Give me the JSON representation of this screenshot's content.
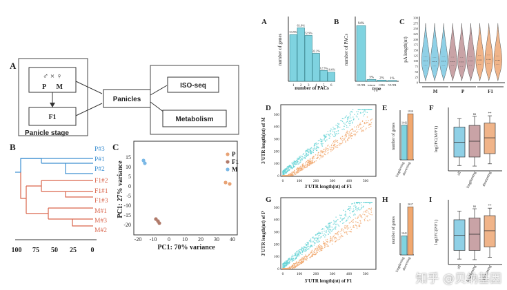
{
  "panelA_left": {
    "label": "A",
    "parents": "P      M",
    "cross_symbol": "♂ × ♀",
    "f1": "F1",
    "panicles": "Panicles",
    "iso_seq": "ISO-seq",
    "metabolism": "Metabolism",
    "stage": "Panicle stage"
  },
  "panelB_left": {
    "label": "B",
    "leaves": [
      "P#3",
      "P#1",
      "P#2",
      "F1#2",
      "F1#1",
      "F1#3",
      "M#1",
      "M#3",
      "M#2"
    ],
    "axis_ticks": [
      "100",
      "75",
      "50",
      "25",
      "0"
    ],
    "colors": {
      "blue": "#3d8fd1",
      "red": "#d9644a"
    }
  },
  "panelC_left": {
    "label": "C",
    "xlabel": "PC1:  70% variance",
    "ylabel": "PC1:  27% variance",
    "legend": [
      {
        "name": "P",
        "color": "#e8a274"
      },
      {
        "name": "F1",
        "color": "#b07a6a"
      },
      {
        "name": "M",
        "color": "#7ab8e6"
      }
    ]
  },
  "chart_data": [
    {
      "type": "bar",
      "panel": "A",
      "categories": [
        "1",
        "2",
        "3",
        "4",
        "5",
        "6"
      ],
      "values": [
        53.9,
        61.8,
        52.9,
        32.2,
        12.5,
        10.6
      ],
      "data_labels": [
        "53.9%",
        "61.8%",
        "52.9%",
        "32.2%",
        "12.5%",
        "10.6%"
      ],
      "xlabel": "number of PACs",
      "ylabel": "number of genes",
      "ylim": [
        0,
        70
      ],
      "color": "#7fd3e0"
    },
    {
      "type": "bar",
      "panel": "B",
      "categories": [
        "3'UTR",
        "intron",
        "CDS",
        "5'UTR"
      ],
      "values": [
        94,
        3,
        2,
        1
      ],
      "data_labels": [
        "94%",
        "3%",
        "2%",
        "1%"
      ],
      "xlabel": "type",
      "ylabel": "number of PACs",
      "ylim": [
        0,
        100
      ],
      "color": "#7fd3e0"
    },
    {
      "type": "violin",
      "panel": "C",
      "ylabel": "pA length(nt)",
      "yticks": [
        "0",
        "25",
        "50",
        "75",
        "100",
        "125",
        "150",
        "175",
        "200",
        "225",
        "250",
        "275",
        "300"
      ],
      "ylim": [
        0,
        300
      ],
      "groups": [
        {
          "name": "M",
          "color": "#8fd0e6",
          "medians": [
            100,
            97,
            99
          ]
        },
        {
          "name": "P",
          "color": "#c9a3a6",
          "medians": [
            98,
            96,
            100
          ]
        },
        {
          "name": "F1",
          "color": "#f0b489",
          "medians": [
            105,
            108,
            104
          ]
        }
      ],
      "group_labels": [
        "M",
        "P",
        "F1"
      ]
    },
    {
      "type": "scatter",
      "panel": "D",
      "xlabel": "3'UTR length(nt) of F1",
      "ylabel": "3'UTR length(nt) of M",
      "xticks": [
        "0",
        "100",
        "200",
        "300",
        "400",
        "500"
      ],
      "yticks": [
        "0",
        "100",
        "200",
        "300",
        "400",
        "500"
      ],
      "xlim": [
        0,
        550
      ],
      "ylim": [
        0,
        550
      ],
      "series": [
        {
          "name": "lengthening",
          "color": "#66d3d6"
        },
        {
          "name": "shortening",
          "color": "#f1a86f"
        }
      ]
    },
    {
      "type": "bar",
      "panel": "E",
      "categories": [
        "lengthening",
        "shortening"
      ],
      "values": [
        1442,
        1910
      ],
      "data_labels": [
        "1442",
        "1910"
      ],
      "colors": [
        "#7fd3e0",
        "#f1a86f"
      ],
      "ylabel": "number of genes",
      "ylim": [
        0,
        2000
      ]
    },
    {
      "type": "box",
      "panel": "F",
      "categories": [
        "all",
        "lengthening",
        "shortening"
      ],
      "colors": [
        "#8fd0e6",
        "#c9a3a6",
        "#f0b489"
      ],
      "ylabel": "log2FC(M/F1)",
      "annotations": [
        "",
        "ns",
        "**"
      ]
    },
    {
      "type": "scatter",
      "panel": "G",
      "xlabel": "3'UTR length(nt) of F1",
      "ylabel": "3'UTR length(nt) of P",
      "xticks": [
        "0",
        "100",
        "200",
        "300",
        "400",
        "500"
      ],
      "yticks": [
        "0",
        "100",
        "200",
        "300",
        "400",
        "500"
      ],
      "xlim": [
        0,
        550
      ],
      "ylim": [
        0,
        550
      ],
      "series": [
        {
          "name": "lengthening",
          "color": "#66d3d6"
        },
        {
          "name": "shortening",
          "color": "#f1a86f"
        }
      ]
    },
    {
      "type": "bar",
      "panel": "H",
      "categories": [
        "lengthening",
        "shortening"
      ],
      "values": [
        1041,
        2617
      ],
      "data_labels": [
        "1041",
        "2617"
      ],
      "colors": [
        "#7fd3e0",
        "#f1a86f"
      ],
      "ylabel": "number of genes",
      "ylim": [
        0,
        2700
      ]
    },
    {
      "type": "box",
      "panel": "I",
      "categories": [
        "all",
        "lengthening",
        "shortening"
      ],
      "colors": [
        "#8fd0e6",
        "#c9a3a6",
        "#f0b489"
      ],
      "ylabel": "log2FC(P/F1)",
      "annotations": [
        "",
        "ns",
        "**"
      ]
    }
  ],
  "panel_labels_right": [
    "A",
    "B",
    "C",
    "D",
    "E",
    "F",
    "G",
    "H",
    "I"
  ],
  "watermark": "知乎 @贝纳基因"
}
